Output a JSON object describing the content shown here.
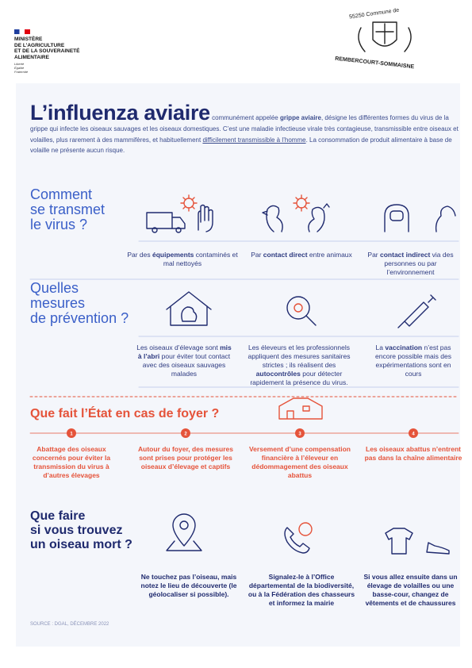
{
  "header": {
    "ministry": [
      "MINISTÈRE",
      "DE L'AGRICULTURE",
      "ET DE LA SOUVERAINETÉ",
      "ALIMENTAIRE"
    ],
    "motto": [
      "Liberté",
      "Égalité",
      "Fraternité"
    ],
    "stamp": [
      "55250 Commune de",
      "REMBERCOURT-SOMMAISNE"
    ]
  },
  "intro": {
    "title": "L’influenza aviaire",
    "parts": [
      "communément appelée ",
      "grippe aviaire",
      ", désigne les différentes formes du virus de la grippe qui infecte les oiseaux sauvages et les oiseaux domestiques. C’est une maladie infectieuse virale très contagieuse, transmissible entre oiseaux et volailles, plus rarement à des mammifères, et habituellement ",
      "difficilement transmissible à l’homme",
      ". La consommation de produit alimentaire à base de volaille ne présente aucun risque."
    ]
  },
  "transmission": {
    "heading": [
      "Comment",
      "se transmet",
      "le virus ?"
    ],
    "items": [
      [
        "Par des ",
        "équipements",
        " contaminés et mal nettoyés"
      ],
      [
        "Par ",
        "contact direct",
        " entre animaux"
      ],
      [
        "Par ",
        "contact indirect",
        " via des personnes ou par l’environnement"
      ]
    ]
  },
  "prevention": {
    "heading": [
      "Quelles",
      "mesures",
      "de prévention ?"
    ],
    "items": [
      [
        "Les oiseaux d’élevage sont ",
        "mis à l’abri",
        " pour éviter tout contact avec des oiseaux sauvages malades"
      ],
      [
        "Les éleveurs et les professionnels appliquent des mesures sanitaires strictes ; ils réalisent des ",
        "autocontrôles",
        " pour détecter rapidement la présence du virus."
      ],
      [
        "La ",
        "vaccination",
        " n’est pas encore possible mais des expérimentations sont en cours"
      ]
    ]
  },
  "state": {
    "heading": "Que fait l’État en cas de foyer ?",
    "steps": [
      {
        "number": "1",
        "text": "Abattage des oiseaux concernés pour éviter la transmission du virus à d’autres élevages"
      },
      {
        "number": "2",
        "text": "Autour du foyer, des mesures sont prises pour protéger les oiseaux d’élevage et captifs"
      },
      {
        "number": "3",
        "text": "Versement d’une compensation financière à l’éleveur en dédommagement des oiseaux abattus"
      },
      {
        "number": "4",
        "text": "Les oiseaux abattus n’entrent pas dans la chaîne alimentaire"
      }
    ]
  },
  "dead_bird": {
    "heading": [
      "Que faire",
      "si vous trouvez",
      "un oiseau mort ?"
    ],
    "items": [
      "Ne touchez pas l’oiseau, mais notez le lieu de découverte (le géolocaliser si possible).",
      "Signalez-le à l’Office départemental de la biodiversité, ou à la Fédération des chasseurs et informez la mairie",
      "Si vous allez ensuite dans un élevage de volailles ou une basse-cour, changez de vêtements et de chaussures"
    ]
  },
  "source": "SOURCE : DGAL, DÉCEMBRE 2022"
}
